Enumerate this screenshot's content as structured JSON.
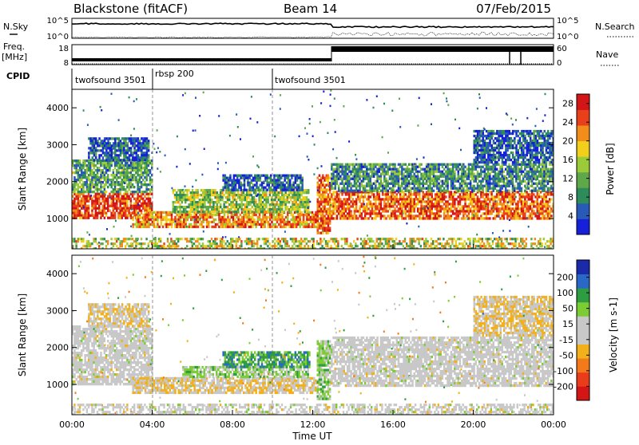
{
  "header": {
    "station": "Blackstone (fitACF)",
    "beam": "Beam 14",
    "date": "07/Feb/2015"
  },
  "summary_panels": {
    "nsky_label": "N.Sky",
    "nsky_ticks": [
      "10^5",
      "10^0"
    ],
    "nsearch_label": "N.Search",
    "nsearch_ticks": [
      "10^5",
      "10^0"
    ],
    "freq_label_top": "Freq.",
    "freq_label_unit": "[MHz]",
    "freq_ticks": [
      "18",
      "8"
    ],
    "nave_label": "Nave",
    "nave_ticks": [
      "60",
      "0"
    ],
    "cpid_label": "CPID",
    "cpid_segments": [
      {
        "name": "twofsound 3501",
        "start_hour": 0.0
      },
      {
        "name": "rbsp 200",
        "start_hour": 4.0
      },
      {
        "name": "twofsound 3501",
        "start_hour": 10.0
      }
    ]
  },
  "colors": {
    "power_scale": [
      "#1520d8",
      "#2a5ab8",
      "#2e8c5a",
      "#5ea84a",
      "#9ccb3a",
      "#f2cf1a",
      "#f28c1a",
      "#e8401a",
      "#d41515"
    ],
    "velocity_scale": [
      "#1a2aa8",
      "#2a68c8",
      "#2e9c40",
      "#7ccc34",
      "#c8c8c8",
      "#c8c8c8",
      "#f2b01a",
      "#f27a1a",
      "#e83c1a",
      "#d41515"
    ]
  },
  "chart_data": [
    {
      "type": "heatmap",
      "xlabel": "Time UT",
      "ylabel": "Slant Range [km]",
      "x_ticks": [
        "00:00",
        "04:00",
        "08:00",
        "12:00",
        "16:00",
        "20:00",
        "00:00"
      ],
      "xlim_hours": [
        0,
        24
      ],
      "y_ticks": [
        1000,
        2000,
        3000,
        4000
      ],
      "ylim_km": [
        180,
        4500
      ],
      "colorbar": {
        "label": "Power [dB]",
        "ticks": [
          4,
          8,
          12,
          16,
          20,
          24,
          28
        ],
        "range": [
          0,
          30
        ]
      },
      "echo_bands": [
        {
          "t0": 0.0,
          "t1": 4.0,
          "r0": 1000,
          "r1": 1700,
          "level": 26
        },
        {
          "t0": 0.0,
          "t1": 4.0,
          "r0": 1700,
          "r1": 2600,
          "level": 10
        },
        {
          "t0": 0.8,
          "t1": 3.8,
          "r0": 2600,
          "r1": 3200,
          "level": 5
        },
        {
          "t0": 3.0,
          "t1": 12.2,
          "r0": 800,
          "r1": 1200,
          "level": 22
        },
        {
          "t0": 5.0,
          "t1": 11.8,
          "r0": 1200,
          "r1": 1800,
          "level": 14
        },
        {
          "t0": 7.5,
          "t1": 11.5,
          "r0": 1800,
          "r1": 2200,
          "level": 5
        },
        {
          "t0": 12.2,
          "t1": 12.9,
          "r0": 600,
          "r1": 2200,
          "level": 24
        },
        {
          "t0": 12.9,
          "t1": 24.0,
          "r0": 1000,
          "r1": 1750,
          "level": 24
        },
        {
          "t0": 12.9,
          "t1": 24.0,
          "r0": 1750,
          "r1": 2500,
          "level": 9
        },
        {
          "t0": 20.0,
          "t1": 24.0,
          "r0": 2500,
          "r1": 3400,
          "level": 5
        }
      ]
    },
    {
      "type": "heatmap",
      "xlabel": "Time UT",
      "ylabel": "Slant Range [km]",
      "x_ticks": [
        "00:00",
        "04:00",
        "08:00",
        "12:00",
        "16:00",
        "20:00",
        "00:00"
      ],
      "xlim_hours": [
        0,
        24
      ],
      "y_ticks": [
        1000,
        2000,
        3000,
        4000
      ],
      "ylim_km": [
        180,
        4500
      ],
      "colorbar": {
        "label": "Velocity [m s-1]",
        "ticks": [
          200,
          100,
          50,
          15,
          -15,
          -50,
          -100,
          -200
        ],
        "range": [
          -250,
          250
        ]
      },
      "echo_bands": [
        {
          "t0": 0.0,
          "t1": 4.0,
          "r0": 1000,
          "r1": 2600,
          "level": 0
        },
        {
          "t0": 0.8,
          "t1": 3.8,
          "r0": 2600,
          "r1": 3200,
          "level": -40
        },
        {
          "t0": 3.0,
          "t1": 12.2,
          "r0": 800,
          "r1": 1200,
          "level": -40
        },
        {
          "t0": 5.5,
          "t1": 11.8,
          "r0": 1200,
          "r1": 1500,
          "level": 60
        },
        {
          "t0": 7.5,
          "t1": 11.8,
          "r0": 1500,
          "r1": 1900,
          "level": 120
        },
        {
          "t0": 12.2,
          "t1": 12.9,
          "r0": 600,
          "r1": 2200,
          "level": 60
        },
        {
          "t0": 12.9,
          "t1": 24.0,
          "r0": 1000,
          "r1": 2300,
          "level": 0
        },
        {
          "t0": 20.0,
          "t1": 24.0,
          "r0": 2300,
          "r1": 3400,
          "level": -45
        }
      ]
    }
  ]
}
